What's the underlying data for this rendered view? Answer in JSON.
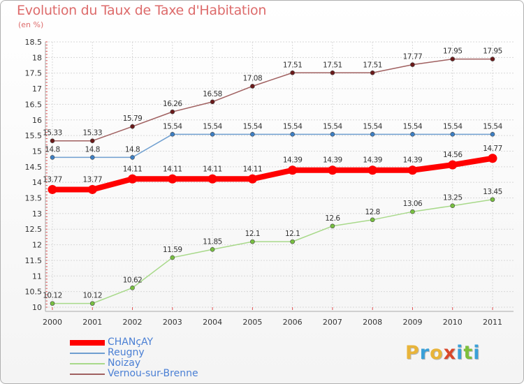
{
  "title": "Evolution du Taux de Taxe d'Habitation",
  "subtitle": "(en %)",
  "logo": {
    "text": "Proxiti",
    "letters": [
      {
        "ch": "P",
        "color": "#e8b43a"
      },
      {
        "ch": "r",
        "color": "#3aa0d8"
      },
      {
        "ch": "o",
        "color": "#e8b43a"
      },
      {
        "ch": "x",
        "color": "#d9482b"
      },
      {
        "ch": "i",
        "color": "#3aa0d8"
      },
      {
        "ch": "t",
        "color": "#7dbf3c"
      },
      {
        "ch": "i",
        "color": "#3aa0d8"
      }
    ]
  },
  "chart_data": {
    "type": "line",
    "x": [
      "2000",
      "2001",
      "2002",
      "2003",
      "2004",
      "2005",
      "2006",
      "2007",
      "2008",
      "2009",
      "2010",
      "2011"
    ],
    "ylim": [
      10,
      18.5
    ],
    "yticks": [
      "10",
      "10.5",
      "11",
      "11.5",
      "12",
      "12.5",
      "13",
      "13.5",
      "14",
      "14.5",
      "15",
      "15.5",
      "16",
      "16.5",
      "17",
      "17.5",
      "18",
      "18.5"
    ],
    "grid": true,
    "legend_position": "bottom-left",
    "series": [
      {
        "name": "CHANçAY",
        "color": "#ff0000",
        "bold": true,
        "values": [
          13.77,
          13.77,
          14.11,
          14.11,
          14.11,
          14.11,
          14.39,
          14.39,
          14.39,
          14.39,
          14.56,
          14.77
        ],
        "labels": [
          "13.77",
          "13.77",
          "14.11",
          "14.11",
          "14.11",
          "14.11",
          "14.39",
          "14.39",
          "14.39",
          "14.39",
          "14.56",
          "14.77"
        ]
      },
      {
        "name": "Reugny",
        "color": "#6f9fd0",
        "marker": "#3d7fc4",
        "bold": false,
        "values": [
          14.8,
          14.8,
          14.8,
          15.54,
          15.54,
          15.54,
          15.54,
          15.54,
          15.54,
          15.54,
          15.54,
          15.54
        ],
        "labels": [
          "14.8",
          "14.8",
          "14.8",
          "15.54",
          "15.54",
          "15.54",
          "15.54",
          "15.54",
          "15.54",
          "15.54",
          "15.54",
          "15.54"
        ]
      },
      {
        "name": "Noizay",
        "color": "#a8d98a",
        "marker": "#78c040",
        "bold": false,
        "values": [
          10.12,
          10.12,
          10.62,
          11.59,
          11.85,
          12.1,
          12.1,
          12.6,
          12.8,
          13.06,
          13.25,
          13.45
        ],
        "labels": [
          "10.12",
          "10.12",
          "10.62",
          "11.59",
          "11.85",
          "12.1",
          "12.1",
          "12.6",
          "12.8",
          "13.06",
          "13.25",
          "13.45"
        ]
      },
      {
        "name": "Vernou-sur-Brenne",
        "color": "#a06060",
        "marker": "#6b1a1a",
        "bold": false,
        "values": [
          15.33,
          15.33,
          15.79,
          16.26,
          16.58,
          17.08,
          17.51,
          17.51,
          17.51,
          17.77,
          17.95,
          17.95
        ],
        "labels": [
          "15.33",
          "15.33",
          "15.79",
          "16.26",
          "16.58",
          "17.08",
          "17.51",
          "17.51",
          "17.51",
          "17.77",
          "17.95",
          "17.95"
        ]
      }
    ]
  }
}
